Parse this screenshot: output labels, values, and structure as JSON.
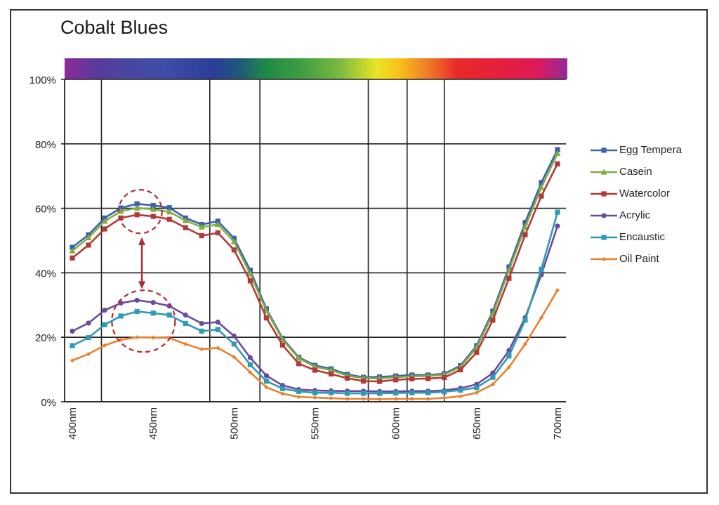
{
  "title": "Cobalt Blues",
  "chart_data": {
    "type": "line",
    "title": "Cobalt Blues",
    "xlabel": "",
    "ylabel": "",
    "x": [
      400,
      410,
      420,
      430,
      440,
      450,
      460,
      470,
      480,
      490,
      500,
      510,
      520,
      530,
      540,
      550,
      560,
      570,
      580,
      590,
      600,
      610,
      620,
      630,
      640,
      650,
      660,
      670,
      680,
      690,
      700
    ],
    "x_tick_labels": [
      "400nm",
      "450nm",
      "500nm",
      "550nm",
      "600nm",
      "650nm",
      "700nm"
    ],
    "x_ticks": [
      400,
      450,
      500,
      550,
      600,
      650,
      700
    ],
    "y_tick_labels": [
      "0%",
      "20%",
      "40%",
      "60%",
      "80%",
      "100%"
    ],
    "y_ticks": [
      0,
      20,
      40,
      60,
      80,
      100
    ],
    "xlim": [
      396,
      708
    ],
    "ylim": [
      0,
      100
    ],
    "grid": {
      "horizontal": [
        20,
        40,
        60,
        80,
        100
      ],
      "vertical_nm": [
        418,
        485,
        516,
        583,
        607,
        630
      ]
    },
    "legend_position": "right",
    "spectrum_bar": true,
    "series": [
      {
        "name": "Egg Tempera",
        "color": "#3a62ad",
        "marker": "square",
        "values": [
          47.9,
          51.8,
          57.0,
          60.1,
          61.4,
          60.9,
          60.2,
          57.0,
          55.0,
          56.0,
          50.7,
          40.8,
          28.8,
          19.7,
          13.8,
          11.3,
          10.2,
          8.5,
          7.6,
          7.7,
          8.0,
          8.3,
          8.3,
          8.7,
          11.2,
          17.4,
          28.1,
          41.8,
          55.6,
          68.0,
          78.2
        ]
      },
      {
        "name": "Casein",
        "color": "#7fae3e",
        "marker": "triangle",
        "values": [
          46.8,
          50.9,
          56.0,
          59.1,
          60.1,
          59.7,
          58.9,
          56.2,
          54.2,
          55.0,
          49.7,
          39.7,
          28.2,
          19.3,
          13.5,
          10.9,
          9.8,
          8.1,
          7.3,
          7.2,
          7.6,
          7.9,
          8.0,
          8.4,
          10.8,
          16.8,
          27.2,
          40.8,
          54.2,
          66.5,
          77.0
        ]
      },
      {
        "name": "Watercolor",
        "color": "#b33a3a",
        "marker": "square",
        "values": [
          44.6,
          48.6,
          53.6,
          57.0,
          58.0,
          57.5,
          56.6,
          54.0,
          51.5,
          52.4,
          47.1,
          37.5,
          26.0,
          17.6,
          11.8,
          9.8,
          8.6,
          7.3,
          6.4,
          6.3,
          6.8,
          7.1,
          7.2,
          7.5,
          9.9,
          15.3,
          25.3,
          38.3,
          51.8,
          63.8,
          73.8
        ]
      },
      {
        "name": "Acrylic",
        "color": "#6b4a9e",
        "marker": "circle",
        "values": [
          21.9,
          24.4,
          28.4,
          30.6,
          31.5,
          30.8,
          29.7,
          26.9,
          24.3,
          24.7,
          20.4,
          13.7,
          8.1,
          5.1,
          3.8,
          3.5,
          3.4,
          3.3,
          3.3,
          3.2,
          3.2,
          3.3,
          3.3,
          3.5,
          4.2,
          5.4,
          8.9,
          15.9,
          26.1,
          39.4,
          54.5
        ]
      },
      {
        "name": "Encaustic",
        "color": "#2f9ab5",
        "marker": "square",
        "values": [
          17.4,
          19.9,
          23.9,
          26.6,
          28.0,
          27.5,
          26.9,
          24.3,
          21.9,
          22.4,
          17.9,
          11.5,
          6.4,
          4.1,
          3.2,
          2.8,
          2.8,
          2.6,
          2.6,
          2.6,
          2.7,
          2.8,
          2.8,
          3.1,
          3.6,
          4.4,
          7.6,
          14.2,
          25.3,
          41.1,
          58.8
        ]
      },
      {
        "name": "Oil Paint",
        "color": "#e8812f",
        "marker": "diamond",
        "values": [
          12.8,
          14.8,
          17.5,
          19.2,
          20.0,
          19.9,
          19.8,
          17.9,
          16.3,
          16.7,
          13.9,
          9.1,
          4.5,
          2.5,
          1.5,
          1.3,
          1.1,
          0.9,
          0.9,
          0.8,
          0.9,
          0.9,
          0.9,
          1.2,
          1.7,
          2.8,
          5.4,
          10.7,
          17.9,
          26.1,
          34.6
        ]
      }
    ],
    "annotations": [
      {
        "type": "dashed-circle",
        "center_nm": 442,
        "center_pct": 59,
        "color": "#b22a2e"
      },
      {
        "type": "dashed-circle",
        "center_nm": 444,
        "center_pct": 25,
        "color": "#b22a2e"
      },
      {
        "type": "double-arrow",
        "x_nm": 443,
        "from_pct": 51,
        "to_pct": 35,
        "color": "#b22a2e"
      }
    ]
  }
}
